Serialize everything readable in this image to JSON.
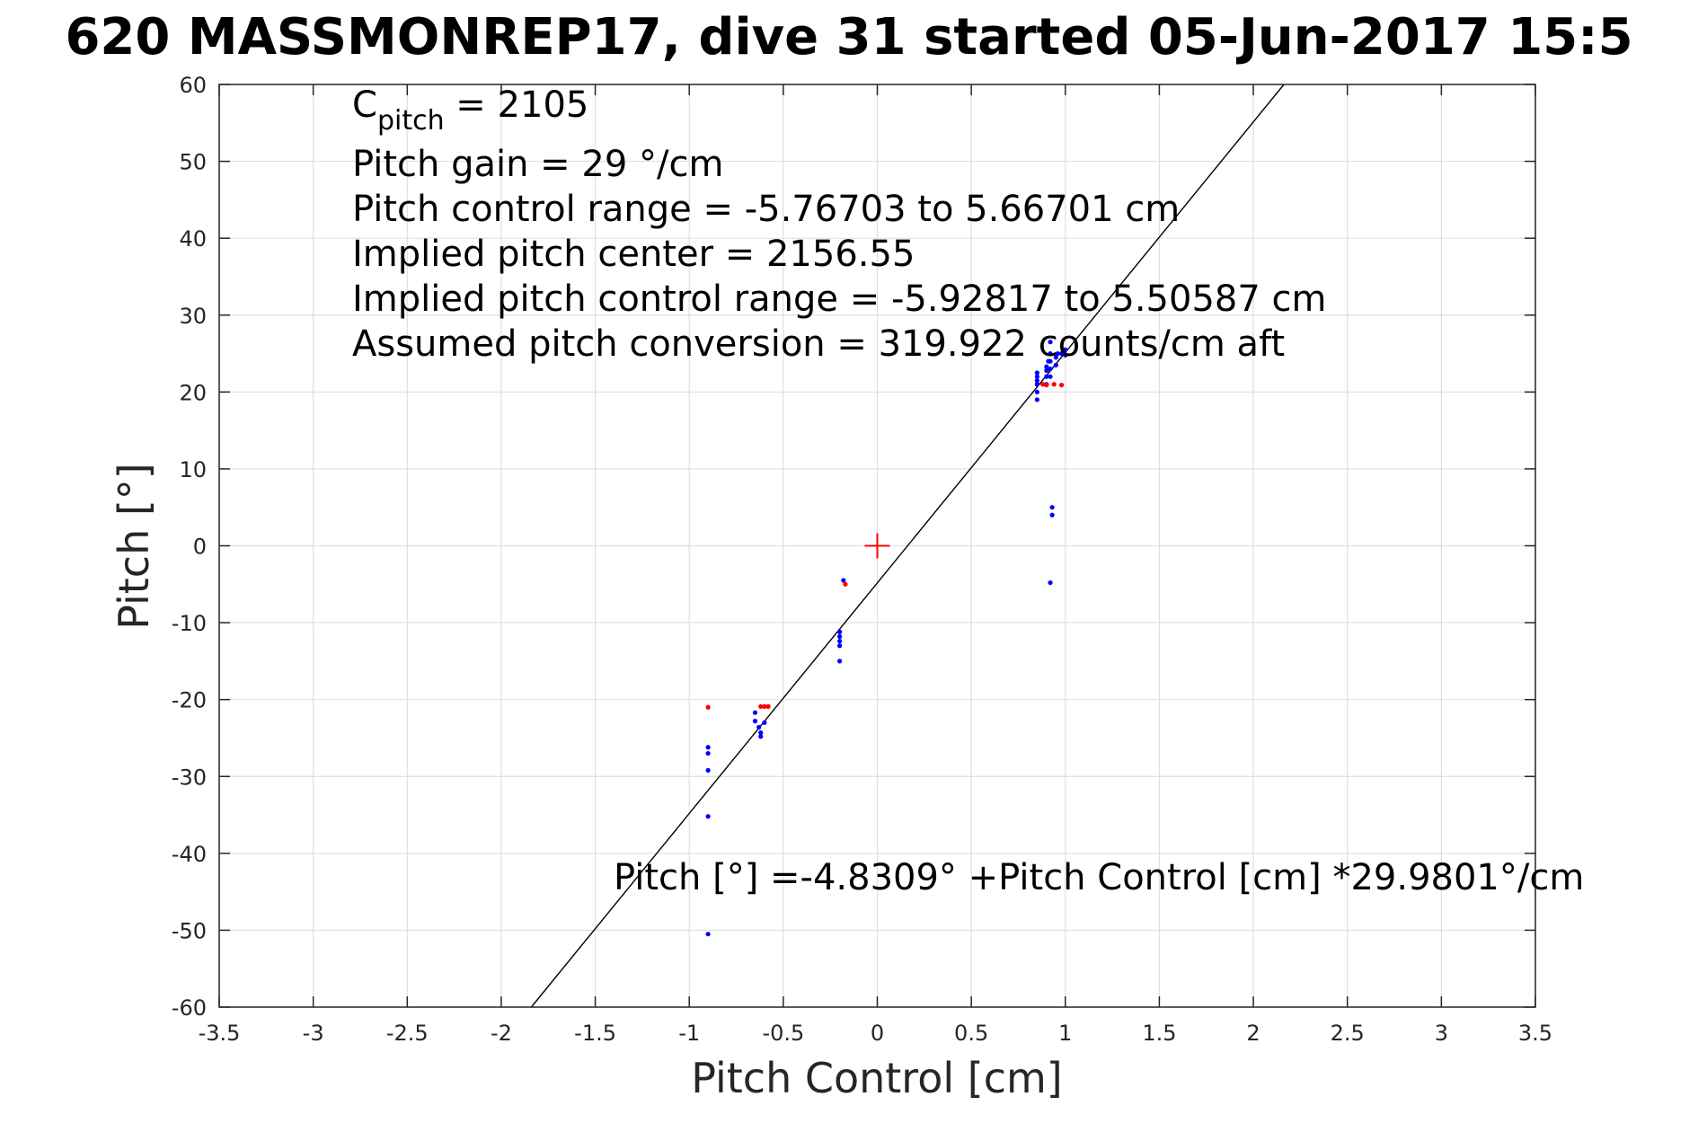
{
  "chart_data": {
    "type": "scatter",
    "title": "620 MASSMONREP17, dive 31 started 05-Jun-2017 15:5",
    "xlabel": "Pitch Control [cm]",
    "ylabel": "Pitch [°]",
    "xlim": [
      -3.5,
      3.5
    ],
    "ylim": [
      -60,
      60
    ],
    "xticks": [
      -3.5,
      -3,
      -2.5,
      -2,
      -1.5,
      -1,
      -0.5,
      0,
      0.5,
      1,
      1.5,
      2,
      2.5,
      3,
      3.5
    ],
    "xtick_labels": [
      "-3.5",
      "-3",
      "-2.5",
      "-2",
      "-1.5",
      "-1",
      "-0.5",
      "0",
      "0.5",
      "1",
      "1.5",
      "2",
      "2.5",
      "3",
      "3.5"
    ],
    "yticks": [
      -60,
      -50,
      -40,
      -30,
      -20,
      -10,
      0,
      10,
      20,
      30,
      40,
      50,
      60
    ],
    "ytick_labels": [
      "-60",
      "-50",
      "-40",
      "-30",
      "-20",
      "-10",
      "0",
      "10",
      "20",
      "30",
      "40",
      "50",
      "60"
    ],
    "grid": true,
    "fit_line": {
      "intercept": -4.8309,
      "slope": 29.9801,
      "color": "#000000"
    },
    "center_marker": {
      "x": 0,
      "y": 0,
      "color": "#ff0000"
    },
    "series": [
      {
        "color": "#0000ff",
        "points": [
          [
            -0.9,
            -26.2
          ],
          [
            -0.9,
            -27
          ],
          [
            -0.9,
            -29.2
          ],
          [
            -0.9,
            -35.2
          ],
          [
            -0.9,
            -50.5
          ],
          [
            -0.65,
            -21.7
          ],
          [
            -0.65,
            -22.8
          ],
          [
            -0.63,
            -23.6
          ],
          [
            -0.62,
            -24.3
          ],
          [
            -0.62,
            -24.8
          ],
          [
            -0.6,
            -23.0
          ],
          [
            -0.18,
            -4.5
          ],
          [
            -0.2,
            -11.2
          ],
          [
            -0.2,
            -11.8
          ],
          [
            -0.2,
            -12.4
          ],
          [
            -0.2,
            -13.0
          ],
          [
            -0.2,
            -15.0
          ],
          [
            0.85,
            19.0
          ],
          [
            0.85,
            20.0
          ],
          [
            0.85,
            21.0
          ],
          [
            0.85,
            21.5
          ],
          [
            0.85,
            22.0
          ],
          [
            0.85,
            22.5
          ],
          [
            0.9,
            21.0
          ],
          [
            0.9,
            22.0
          ],
          [
            0.9,
            22.8
          ],
          [
            0.9,
            23.3
          ],
          [
            0.91,
            24.0
          ],
          [
            0.92,
            22.0
          ],
          [
            0.92,
            23.0
          ],
          [
            0.92,
            24.0
          ],
          [
            0.92,
            25.0
          ],
          [
            0.92,
            26.5
          ],
          [
            0.93,
            4.0
          ],
          [
            0.93,
            5.0
          ],
          [
            0.92,
            -4.8
          ],
          [
            0.95,
            23.5
          ],
          [
            0.95,
            24.5
          ],
          [
            0.96,
            25.0
          ],
          [
            0.98,
            25.0
          ],
          [
            1.0,
            25.5
          ],
          [
            1.0,
            24.8
          ]
        ]
      },
      {
        "color": "#ff0000",
        "points": [
          [
            -0.9,
            -21.0
          ],
          [
            -0.62,
            -20.9
          ],
          [
            -0.6,
            -20.9
          ],
          [
            -0.58,
            -20.9
          ],
          [
            -0.17,
            -5.0
          ],
          [
            0.88,
            21.0
          ],
          [
            0.9,
            20.9
          ],
          [
            0.94,
            21.0
          ],
          [
            0.98,
            20.9
          ]
        ]
      }
    ],
    "annotations": {
      "c_pitch_main": "C",
      "c_pitch_sub": "pitch",
      "c_pitch_rest": " = 2105",
      "lines": [
        "Pitch gain = 29 °/cm",
        "Pitch control range = -5.76703 to 5.66701 cm",
        "Implied pitch center = 2156.55",
        "Implied pitch control range = -5.92817 to 5.50587 cm",
        "Assumed pitch conversion = 319.922 counts/cm aft"
      ],
      "fit_text": "Pitch [°] =-4.8309° +Pitch Control [cm] *29.9801°/cm"
    }
  }
}
